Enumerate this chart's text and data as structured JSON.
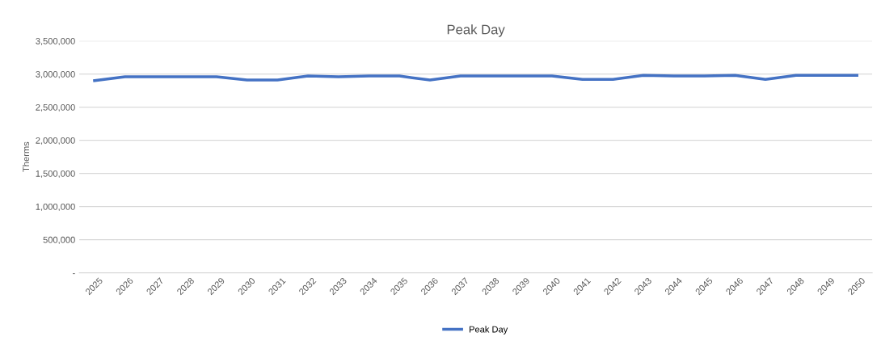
{
  "chart_data": {
    "type": "line",
    "title": "Peak Day",
    "ylabel": "Therms",
    "categories": [
      "2025",
      "2026",
      "2027",
      "2028",
      "2029",
      "2030",
      "2031",
      "2032",
      "2033",
      "2034",
      "2035",
      "2036",
      "2037",
      "2038",
      "2039",
      "2040",
      "2041",
      "2042",
      "2043",
      "2044",
      "2045",
      "2046",
      "2047",
      "2048",
      "2049",
      "2050"
    ],
    "series": [
      {
        "name": "Peak Day",
        "color": "#4472c4",
        "values": [
          2900000,
          2960000,
          2960000,
          2960000,
          2960000,
          2910000,
          2910000,
          2970000,
          2960000,
          2970000,
          2970000,
          2910000,
          2970000,
          2970000,
          2970000,
          2970000,
          2920000,
          2920000,
          2980000,
          2970000,
          2970000,
          2980000,
          2920000,
          2980000,
          2980000,
          2980000
        ]
      }
    ],
    "ylim": [
      0,
      3500000
    ],
    "yticks": [
      {
        "value": 0,
        "label": "-"
      },
      {
        "value": 500000,
        "label": "500,000"
      },
      {
        "value": 1000000,
        "label": "1,000,000"
      },
      {
        "value": 1500000,
        "label": "1,500,000"
      },
      {
        "value": 2000000,
        "label": "2,000,000"
      },
      {
        "value": 2500000,
        "label": "2,500,000"
      },
      {
        "value": 3000000,
        "label": "3,000,000"
      },
      {
        "value": 3500000,
        "label": "3,500,000"
      }
    ],
    "grid": "y",
    "legend": "bottom",
    "line_style": "solid",
    "marker": "none"
  }
}
